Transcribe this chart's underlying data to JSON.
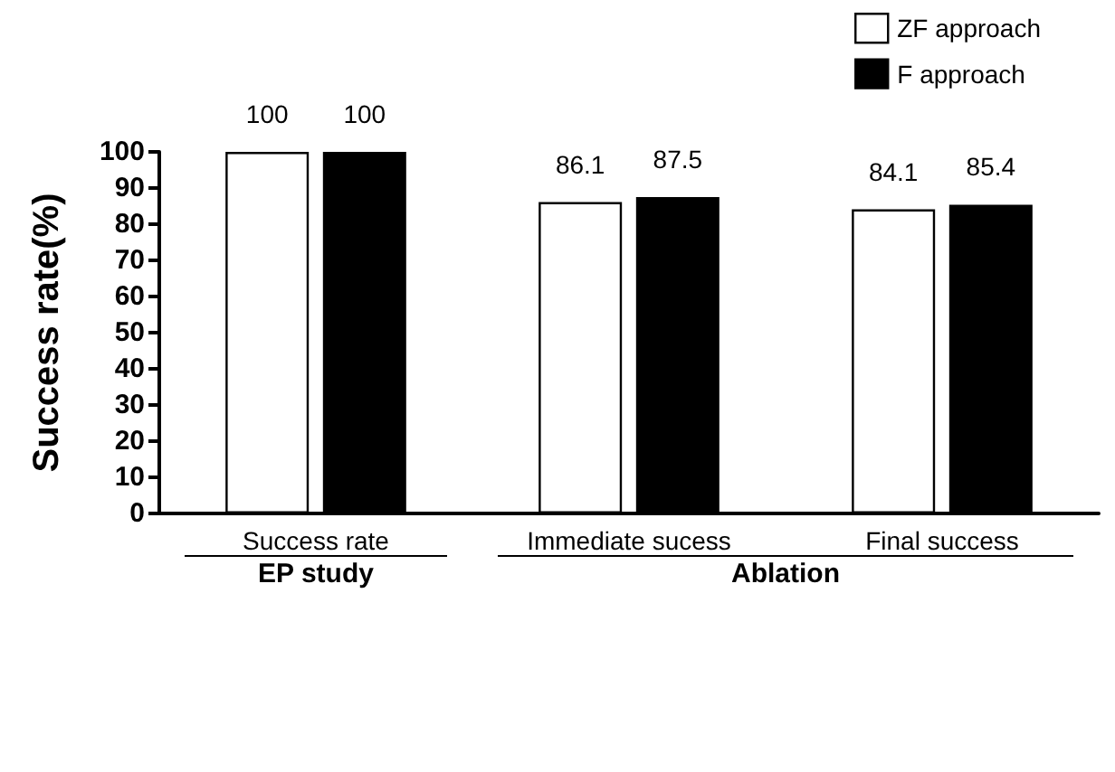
{
  "chart_data": {
    "type": "bar",
    "ylabel": "Success rate(%)",
    "categories": [
      "Success rate",
      "Immediate sucess",
      "Final success"
    ],
    "series": [
      {
        "name": "ZF approach",
        "color": "#ffffff",
        "values": [
          100,
          86.1,
          84.1
        ]
      },
      {
        "name": "F approach",
        "color": "#000000",
        "values": [
          100,
          87.5,
          85.4
        ]
      }
    ],
    "ylim": [
      0,
      100
    ],
    "yticks": [
      0,
      10,
      20,
      30,
      40,
      50,
      60,
      70,
      80,
      90,
      100
    ],
    "data_labels": true,
    "legend": "top right",
    "grid": false,
    "annotations": [
      "EP study",
      "Ablation"
    ]
  }
}
